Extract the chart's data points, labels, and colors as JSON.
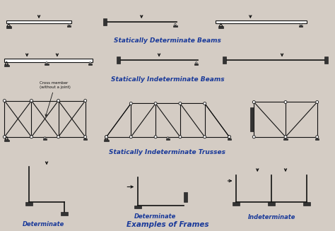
{
  "bg_color": "#d4ccc4",
  "title_color": "#1a3a9a",
  "line_color": "#111111",
  "lw": 0.8,
  "section_titles": {
    "beams_det": "Statically Determinate Beams",
    "beams_indet": "Statically Indeterminate Beams",
    "trusses": "Statically Indeterminate Trusses",
    "frames": "Examples of Frames"
  },
  "frame_labels": {
    "det1": "Determinate",
    "det2": "Determinate",
    "indet": "Indeterminate"
  },
  "cross_member_label": "Cross member\n(without a joint)"
}
